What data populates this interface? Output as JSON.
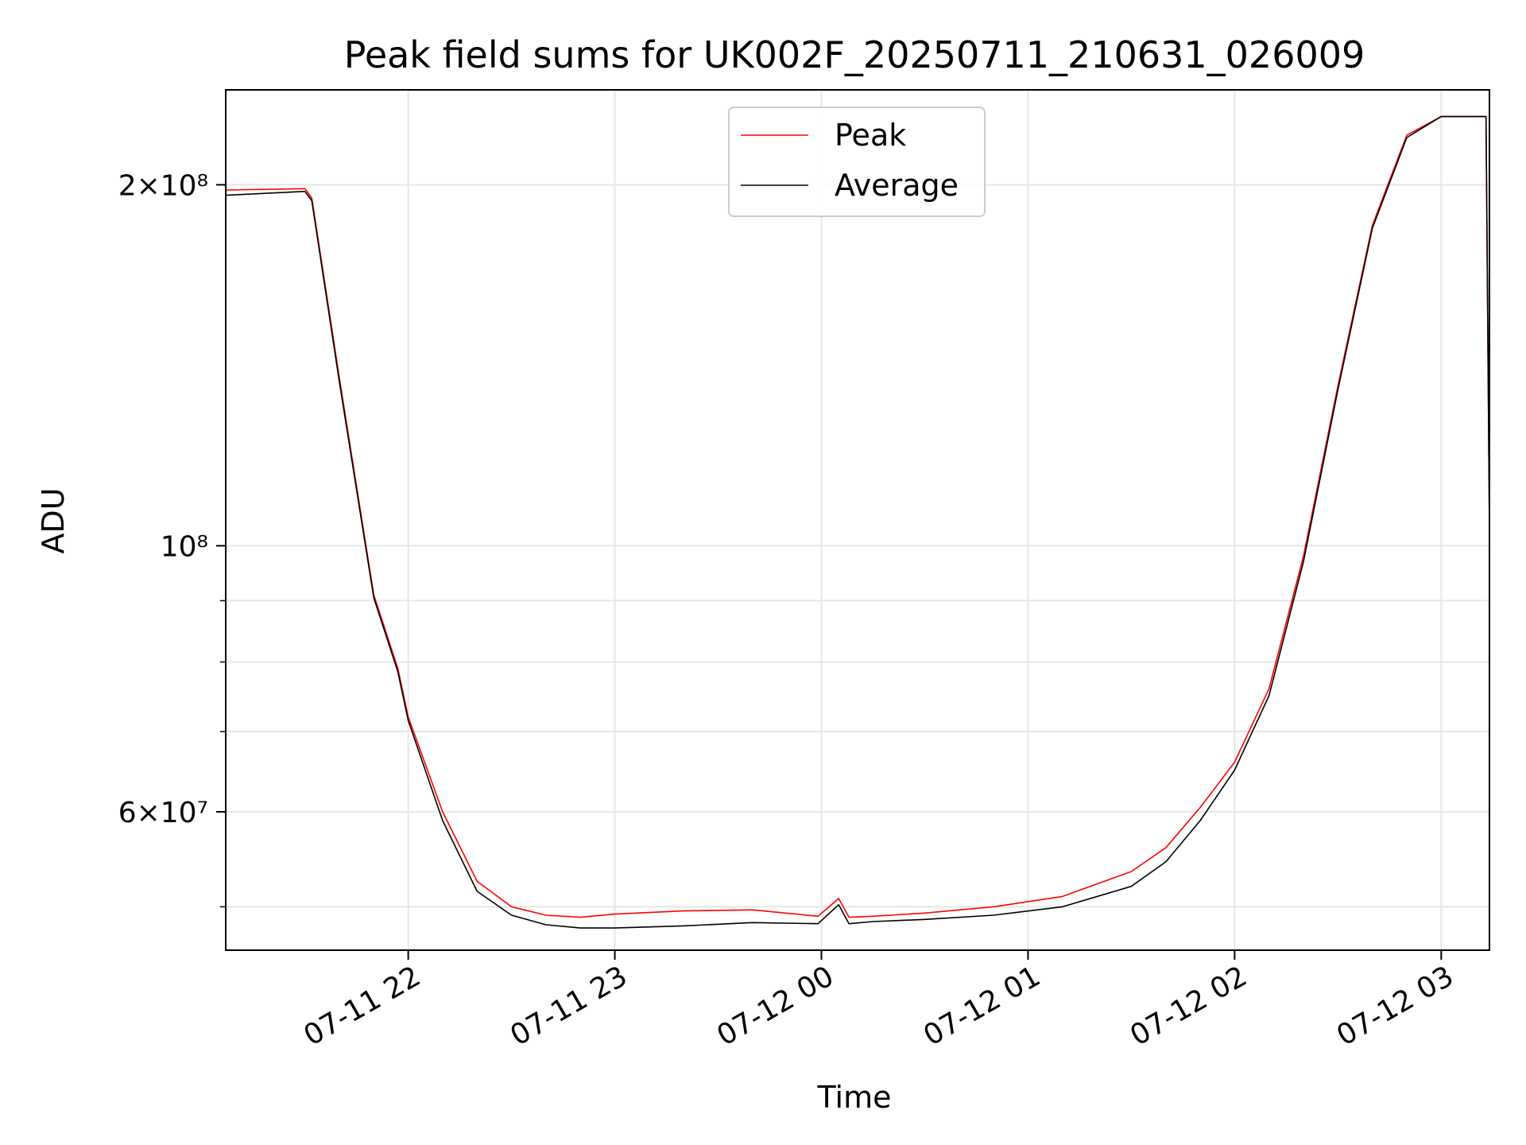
{
  "chart_data": {
    "type": "line",
    "title": "Peak field sums for UK002F_20250711_210631_026009",
    "xlabel": "Time",
    "ylabel": "ADU",
    "yscale": "log",
    "xlim": [
      "2025-07-11 21:07",
      "2025-07-12 03:14"
    ],
    "ylim": [
      46000000,
      240000000
    ],
    "grid": true,
    "legend": "upper center",
    "x_ticks": [
      "07-11 22",
      "07-11 23",
      "07-12 00",
      "07-12 01",
      "07-12 02",
      "07-12 03"
    ],
    "x_tick_times": [
      "2025-07-11 22:00",
      "2025-07-11 23:00",
      "2025-07-12 00:00",
      "2025-07-12 01:00",
      "2025-07-12 02:00",
      "2025-07-12 03:00"
    ],
    "y_ticks": [
      {
        "value": 200000000,
        "label": "2×10⁸"
      },
      {
        "value": 100000000,
        "label": "10⁸"
      },
      {
        "value": 60000000,
        "label": "6×10⁷"
      }
    ],
    "series": [
      {
        "name": "Peak",
        "color": "#ff0000",
        "x": [
          "21:07",
          "21:30",
          "21:32",
          "21:40",
          "21:50",
          "21:57",
          "22:00",
          "22:10",
          "22:20",
          "22:30",
          "22:40",
          "22:50",
          "23:00",
          "23:20",
          "23:40",
          "23:59",
          "00:05",
          "00:08",
          "00:15",
          "00:30",
          "00:50",
          "01:10",
          "01:30",
          "01:40",
          "01:50",
          "02:00",
          "02:10",
          "02:20",
          "02:30",
          "02:40",
          "02:50",
          "03:00",
          "03:13",
          "03:14"
        ],
        "y": [
          198000000,
          198500000,
          195000000,
          138000000,
          91000000,
          79000000,
          72000000,
          60000000,
          52500000,
          50000000,
          49200000,
          49000000,
          49300000,
          49600000,
          49700000,
          49100000,
          50800000,
          49000000,
          49100000,
          49400000,
          50000000,
          51000000,
          53500000,
          56000000,
          60500000,
          66000000,
          76000000,
          98000000,
          136000000,
          185000000,
          220000000,
          228000000,
          228000000,
          103000000
        ]
      },
      {
        "name": "Average",
        "color": "#000000",
        "x": [
          "21:07",
          "21:30",
          "21:32",
          "21:40",
          "21:50",
          "21:57",
          "22:00",
          "22:10",
          "22:20",
          "22:30",
          "22:40",
          "22:50",
          "23:00",
          "23:20",
          "23:40",
          "23:59",
          "00:05",
          "00:08",
          "00:15",
          "00:30",
          "00:50",
          "01:10",
          "01:30",
          "01:40",
          "01:50",
          "02:00",
          "02:10",
          "02:20",
          "02:30",
          "02:40",
          "02:50",
          "03:00",
          "03:13",
          "03:14"
        ],
        "y": [
          196000000,
          197500000,
          194000000,
          137000000,
          90500000,
          78500000,
          71500000,
          59000000,
          51500000,
          49200000,
          48300000,
          48000000,
          48000000,
          48200000,
          48500000,
          48400000,
          50200000,
          48400000,
          48600000,
          48800000,
          49200000,
          50000000,
          52000000,
          54500000,
          59000000,
          65000000,
          75000000,
          97000000,
          135000000,
          184000000,
          219000000,
          228000000,
          228000000,
          103000000
        ]
      }
    ]
  }
}
